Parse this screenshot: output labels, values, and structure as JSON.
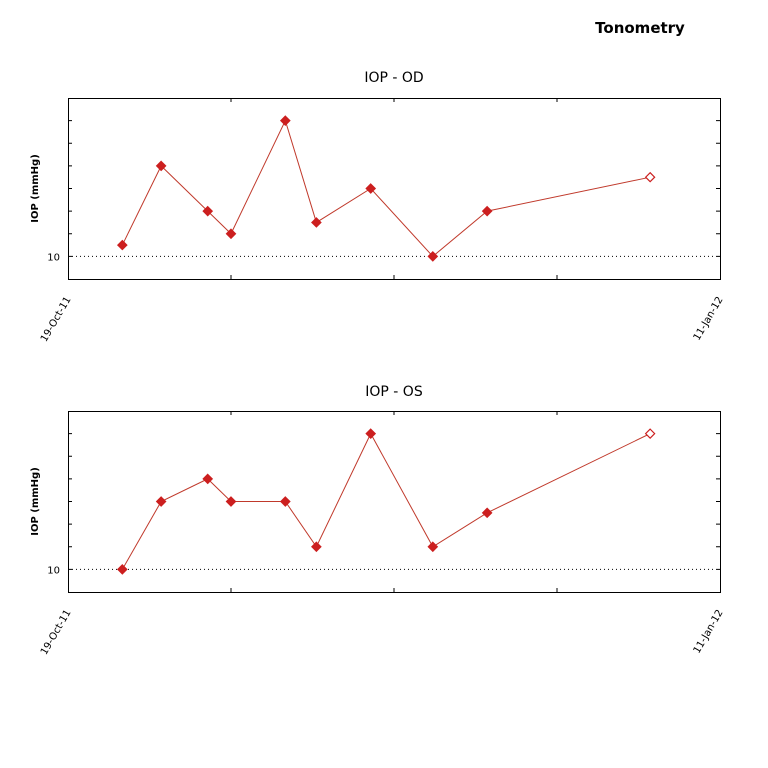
{
  "page": {
    "title": "Tonometry"
  },
  "colors": {
    "series": "#cc1f1f",
    "line": "#c0392b",
    "frame": "#000000"
  },
  "chart_data": [
    {
      "type": "line",
      "title": "IOP - OD",
      "ylabel": "IOP (mmHg)",
      "yticks": [
        "10"
      ],
      "xtick_labels": [
        "19-Oct-11",
        "11-Jan-12"
      ],
      "xlim": [
        "2011-10-19",
        "2012-01-11"
      ],
      "ylim": [
        9,
        17
      ],
      "grid": false,
      "reference_line": {
        "y": 10,
        "style": "dotted"
      },
      "series": [
        {
          "x": [
            "2011-10-26",
            "2011-10-31",
            "2011-11-06",
            "2011-11-09",
            "2011-11-16",
            "2011-11-20",
            "2011-11-27",
            "2011-12-05",
            "2011-12-12",
            "2012-01-02"
          ],
          "y": [
            10.5,
            14.0,
            12.0,
            11.0,
            16.0,
            11.5,
            13.0,
            10.0,
            12.0,
            13.5
          ],
          "marker": [
            "filled",
            "filled",
            "filled",
            "filled",
            "filled",
            "filled",
            "filled",
            "filled",
            "filled",
            "open"
          ]
        }
      ]
    },
    {
      "type": "line",
      "title": "IOP - OS",
      "ylabel": "IOP (mmHg)",
      "yticks": [
        "10"
      ],
      "xtick_labels": [
        "19-Oct-11",
        "11-Jan-12"
      ],
      "xlim": [
        "2011-10-19",
        "2012-01-11"
      ],
      "ylim": [
        9,
        17
      ],
      "grid": false,
      "reference_line": {
        "y": 10,
        "style": "dotted"
      },
      "series": [
        {
          "x": [
            "2011-10-26",
            "2011-10-31",
            "2011-11-06",
            "2011-11-09",
            "2011-11-16",
            "2011-11-20",
            "2011-11-27",
            "2011-12-05",
            "2011-12-12",
            "2012-01-02"
          ],
          "y": [
            10.0,
            13.0,
            14.0,
            13.0,
            13.0,
            11.0,
            16.0,
            11.0,
            12.5,
            16.0
          ],
          "marker": [
            "filled",
            "filled",
            "filled",
            "filled",
            "filled",
            "filled",
            "filled",
            "filled",
            "filled",
            "open"
          ]
        }
      ]
    }
  ]
}
